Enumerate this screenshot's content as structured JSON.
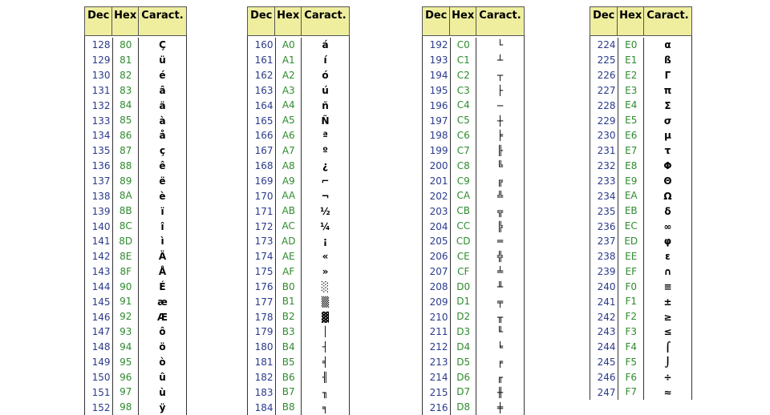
{
  "tables": [
    {
      "columns": [
        "Dec",
        "Hex",
        "Caract."
      ],
      "rows": [
        [
          "128",
          "80",
          "Ç"
        ],
        [
          "129",
          "81",
          "ü"
        ],
        [
          "130",
          "82",
          "é"
        ],
        [
          "131",
          "83",
          "â"
        ],
        [
          "132",
          "84",
          "ä"
        ],
        [
          "133",
          "85",
          "à"
        ],
        [
          "134",
          "86",
          "å"
        ],
        [
          "135",
          "87",
          "ç"
        ],
        [
          "136",
          "88",
          "ê"
        ],
        [
          "137",
          "89",
          "ë"
        ],
        [
          "138",
          "8A",
          "è"
        ],
        [
          "139",
          "8B",
          "ï"
        ],
        [
          "140",
          "8C",
          "î"
        ],
        [
          "141",
          "8D",
          "ì"
        ],
        [
          "142",
          "8E",
          "Ä"
        ],
        [
          "143",
          "8F",
          "Å"
        ],
        [
          "144",
          "90",
          "É"
        ],
        [
          "145",
          "91",
          "æ"
        ],
        [
          "146",
          "92",
          "Æ"
        ],
        [
          "147",
          "93",
          "ô"
        ],
        [
          "148",
          "94",
          "ö"
        ],
        [
          "149",
          "95",
          "ò"
        ],
        [
          "150",
          "96",
          "û"
        ],
        [
          "151",
          "97",
          "ù"
        ],
        [
          "152",
          "98",
          "ÿ"
        ]
      ]
    },
    {
      "columns": [
        "Dec",
        "Hex",
        "Caract."
      ],
      "rows": [
        [
          "160",
          "A0",
          "á"
        ],
        [
          "161",
          "A1",
          "í"
        ],
        [
          "162",
          "A2",
          "ó"
        ],
        [
          "163",
          "A3",
          "ú"
        ],
        [
          "164",
          "A4",
          "ñ"
        ],
        [
          "165",
          "A5",
          "Ñ"
        ],
        [
          "166",
          "A6",
          "ª"
        ],
        [
          "167",
          "A7",
          "º"
        ],
        [
          "168",
          "A8",
          "¿"
        ],
        [
          "169",
          "A9",
          "⌐"
        ],
        [
          "170",
          "AA",
          "¬"
        ],
        [
          "171",
          "AB",
          "½"
        ],
        [
          "172",
          "AC",
          "¼"
        ],
        [
          "173",
          "AD",
          "¡"
        ],
        [
          "174",
          "AE",
          "«"
        ],
        [
          "175",
          "AF",
          "»"
        ],
        [
          "176",
          "B0",
          "░"
        ],
        [
          "177",
          "B1",
          "▒"
        ],
        [
          "178",
          "B2",
          "▓"
        ],
        [
          "179",
          "B3",
          "│"
        ],
        [
          "180",
          "B4",
          "┤"
        ],
        [
          "181",
          "B5",
          "╡"
        ],
        [
          "182",
          "B6",
          "╢"
        ],
        [
          "183",
          "B7",
          "╖"
        ],
        [
          "184",
          "B8",
          "╕"
        ]
      ]
    },
    {
      "columns": [
        "Dec",
        "Hex",
        "Caract."
      ],
      "rows": [
        [
          "192",
          "C0",
          "└"
        ],
        [
          "193",
          "C1",
          "┴"
        ],
        [
          "194",
          "C2",
          "┬"
        ],
        [
          "195",
          "C3",
          "├"
        ],
        [
          "196",
          "C4",
          "─"
        ],
        [
          "197",
          "C5",
          "┼"
        ],
        [
          "198",
          "C6",
          "╞"
        ],
        [
          "199",
          "C7",
          "╟"
        ],
        [
          "200",
          "C8",
          "╚"
        ],
        [
          "201",
          "C9",
          "╔"
        ],
        [
          "202",
          "CA",
          "╩"
        ],
        [
          "203",
          "CB",
          "╦"
        ],
        [
          "204",
          "CC",
          "╠"
        ],
        [
          "205",
          "CD",
          "═"
        ],
        [
          "206",
          "CE",
          "╬"
        ],
        [
          "207",
          "CF",
          "╧"
        ],
        [
          "208",
          "D0",
          "╨"
        ],
        [
          "209",
          "D1",
          "╤"
        ],
        [
          "210",
          "D2",
          "╥"
        ],
        [
          "211",
          "D3",
          "╙"
        ],
        [
          "212",
          "D4",
          "╘"
        ],
        [
          "213",
          "D5",
          "╒"
        ],
        [
          "214",
          "D6",
          "╓"
        ],
        [
          "215",
          "D7",
          "╫"
        ],
        [
          "216",
          "D8",
          "╪"
        ]
      ]
    },
    {
      "columns": [
        "Dec",
        "Hex",
        "Caract."
      ],
      "rows": [
        [
          "224",
          "E0",
          "α"
        ],
        [
          "225",
          "E1",
          "ß"
        ],
        [
          "226",
          "E2",
          "Γ"
        ],
        [
          "227",
          "E3",
          "π"
        ],
        [
          "228",
          "E4",
          "Σ"
        ],
        [
          "229",
          "E5",
          "σ"
        ],
        [
          "230",
          "E6",
          "µ"
        ],
        [
          "231",
          "E7",
          "τ"
        ],
        [
          "232",
          "E8",
          "Φ"
        ],
        [
          "233",
          "E9",
          "Θ"
        ],
        [
          "234",
          "EA",
          "Ω"
        ],
        [
          "235",
          "EB",
          "δ"
        ],
        [
          "236",
          "EC",
          "∞"
        ],
        [
          "237",
          "ED",
          "φ"
        ],
        [
          "238",
          "EE",
          "ε"
        ],
        [
          "239",
          "EF",
          "∩"
        ],
        [
          "240",
          "F0",
          "≡"
        ],
        [
          "241",
          "F1",
          "±"
        ],
        [
          "242",
          "F2",
          "≥"
        ],
        [
          "243",
          "F3",
          "≤"
        ],
        [
          "244",
          "F4",
          "⌠"
        ],
        [
          "245",
          "F5",
          "⌡"
        ],
        [
          "246",
          "F6",
          "÷"
        ],
        [
          "247",
          "F7",
          "≈"
        ]
      ]
    }
  ]
}
